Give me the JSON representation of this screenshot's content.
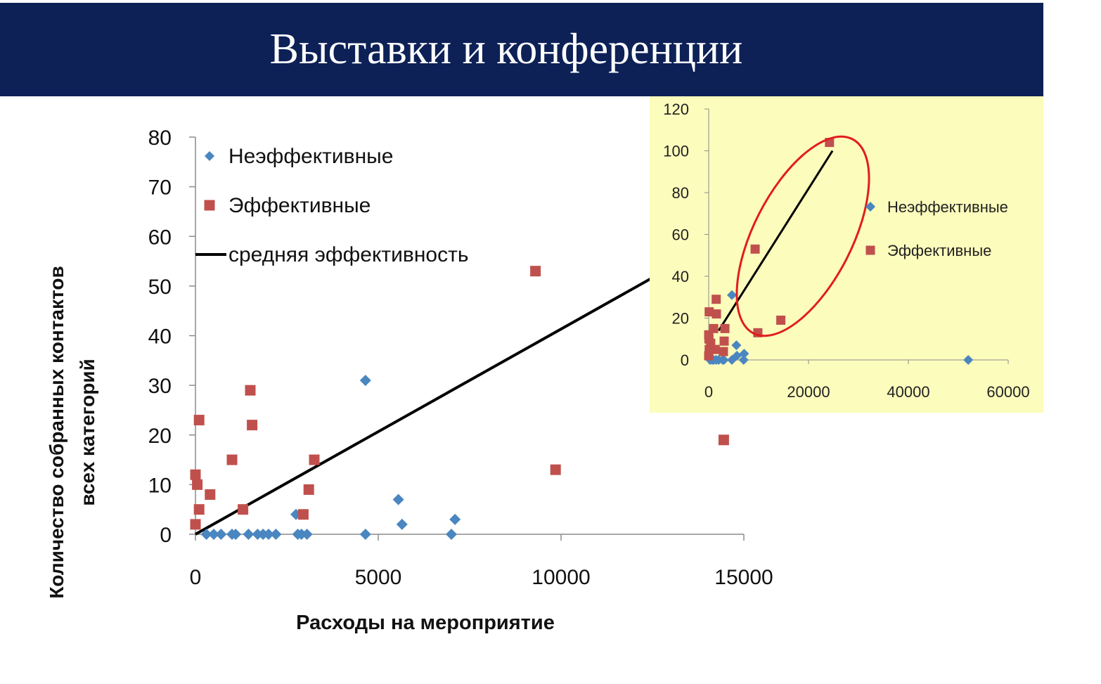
{
  "slide": {
    "title": "Выставки и конференции"
  },
  "colors": {
    "title_bar": "#0d2157",
    "title_text": "#ffffff",
    "ineffective": "#4a86c0",
    "effective": "#c0504d",
    "avg_line": "#000000",
    "inset_background": "#fcfcbc",
    "ellipse": "#e11d1d"
  },
  "chart_data": [
    {
      "type": "scatter",
      "title": "",
      "xlabel": "Расходы на мероприятие",
      "ylabel": "Количество собранных контактов всех категорий",
      "xlim": [
        0,
        15000
      ],
      "ylim": [
        0,
        80
      ],
      "x_ticks": [
        "0",
        "5000",
        "10000",
        "15000"
      ],
      "y_ticks": [
        "0",
        "10",
        "20",
        "30",
        "40",
        "50",
        "60",
        "70",
        "80"
      ],
      "legend_position": "top-left",
      "grid": false,
      "series": [
        {
          "name": "Неэффективные",
          "marker": "diamond",
          "points": [
            [
              300,
              0
            ],
            [
              500,
              0
            ],
            [
              700,
              0
            ],
            [
              1000,
              0
            ],
            [
              1100,
              0
            ],
            [
              1450,
              0
            ],
            [
              1700,
              0
            ],
            [
              1850,
              0
            ],
            [
              2000,
              0
            ],
            [
              2200,
              0
            ],
            [
              2750,
              4
            ],
            [
              2800,
              0
            ],
            [
              2900,
              0
            ],
            [
              3050,
              0
            ],
            [
              4650,
              31
            ],
            [
              4650,
              0
            ],
            [
              5550,
              7
            ],
            [
              5650,
              2
            ],
            [
              7000,
              0
            ],
            [
              7100,
              3
            ]
          ]
        },
        {
          "name": "Эффективные",
          "marker": "square",
          "points": [
            [
              0,
              2
            ],
            [
              0,
              12
            ],
            [
              50,
              10
            ],
            [
              100,
              23
            ],
            [
              100,
              5
            ],
            [
              400,
              8
            ],
            [
              1000,
              15
            ],
            [
              1300,
              5
            ],
            [
              1500,
              29
            ],
            [
              1550,
              22
            ],
            [
              2950,
              4
            ],
            [
              3100,
              9
            ],
            [
              3250,
              15
            ],
            [
              9300,
              53
            ],
            [
              9850,
              13
            ],
            [
              14450,
              19
            ]
          ]
        },
        {
          "name": "средняя эффективность",
          "type": "line",
          "points": [
            [
              0,
              0
            ],
            [
              15000,
              62
            ]
          ]
        }
      ]
    },
    {
      "type": "scatter",
      "title": "",
      "xlabel": "",
      "ylabel": "",
      "xlim": [
        0,
        60000
      ],
      "ylim": [
        0,
        120
      ],
      "x_ticks": [
        "0",
        "20000",
        "40000",
        "60000"
      ],
      "y_ticks": [
        "0",
        "20",
        "40",
        "60",
        "80",
        "100",
        "120"
      ],
      "legend_position": "right",
      "grid": false,
      "series": [
        {
          "name": "Неэффективные",
          "marker": "diamond",
          "points": [
            [
              300,
              0
            ],
            [
              700,
              0
            ],
            [
              1000,
              0
            ],
            [
              1500,
              0
            ],
            [
              2000,
              0
            ],
            [
              2800,
              0
            ],
            [
              3050,
              0
            ],
            [
              4650,
              31
            ],
            [
              4650,
              0
            ],
            [
              5550,
              7
            ],
            [
              5650,
              2
            ],
            [
              7000,
              0
            ],
            [
              7100,
              3
            ],
            [
              52000,
              0
            ]
          ]
        },
        {
          "name": "Эффективные",
          "marker": "square",
          "points": [
            [
              0,
              2
            ],
            [
              0,
              12
            ],
            [
              50,
              10
            ],
            [
              100,
              23
            ],
            [
              100,
              5
            ],
            [
              400,
              8
            ],
            [
              1000,
              15
            ],
            [
              1300,
              5
            ],
            [
              1500,
              29
            ],
            [
              1550,
              22
            ],
            [
              2950,
              4
            ],
            [
              3100,
              9
            ],
            [
              3250,
              15
            ],
            [
              9300,
              53
            ],
            [
              9850,
              13
            ],
            [
              14450,
              19
            ],
            [
              24200,
              104
            ]
          ]
        },
        {
          "name": "",
          "type": "line",
          "points": [
            [
              2000,
              14
            ],
            [
              24800,
              100
            ]
          ]
        }
      ]
    }
  ]
}
